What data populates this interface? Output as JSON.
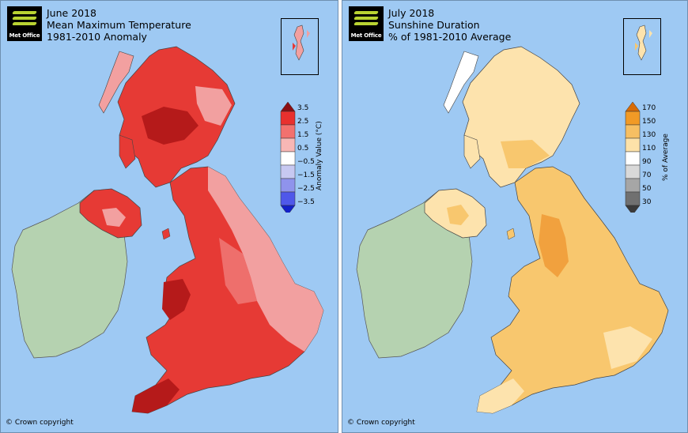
{
  "left_panel": {
    "logo_text": "Met Office",
    "title_lines": [
      "June 2018",
      "Mean Maximum Temperature",
      "1981-2010 Anomaly"
    ],
    "copyright": "© Crown copyright",
    "colorbar": {
      "title": "Anomaly Value (°C)",
      "ticks": [
        "3.5",
        "2.5",
        "1.5",
        "0.5",
        "−0.5",
        "−1.5",
        "−2.5",
        "−3.5"
      ],
      "colors": [
        "#8b0e12",
        "#e8302e",
        "#f2716e",
        "#f8b7b5",
        "#ffffff",
        "#c7c8f1",
        "#8f93ec",
        "#4f58ea",
        "#1320c9"
      ]
    },
    "land_colors": {
      "ireland": "#b5d2b0",
      "main": "#e63a35",
      "dark": "#b51a1a",
      "light": "#f2a0a0",
      "mid": "#ee6f6c"
    }
  },
  "right_panel": {
    "logo_text": "Met Office",
    "title_lines": [
      "July 2018",
      "Sunshine Duration",
      "% of 1981-2010 Average"
    ],
    "copyright": "© Crown copyright",
    "colorbar": {
      "title": "% of Average",
      "ticks": [
        "170",
        "150",
        "130",
        "110",
        "90",
        "70",
        "50",
        "30"
      ],
      "colors": [
        "#d86c07",
        "#f19a26",
        "#f6bf63",
        "#fde2a9",
        "#ffffff",
        "#d9d9d9",
        "#a6a6a6",
        "#707070",
        "#3a3a3a"
      ]
    },
    "land_colors": {
      "ireland": "#b5d2b0",
      "main": "#f8c76e",
      "dark": "#f1a13e",
      "light": "#fde3ad"
    }
  }
}
